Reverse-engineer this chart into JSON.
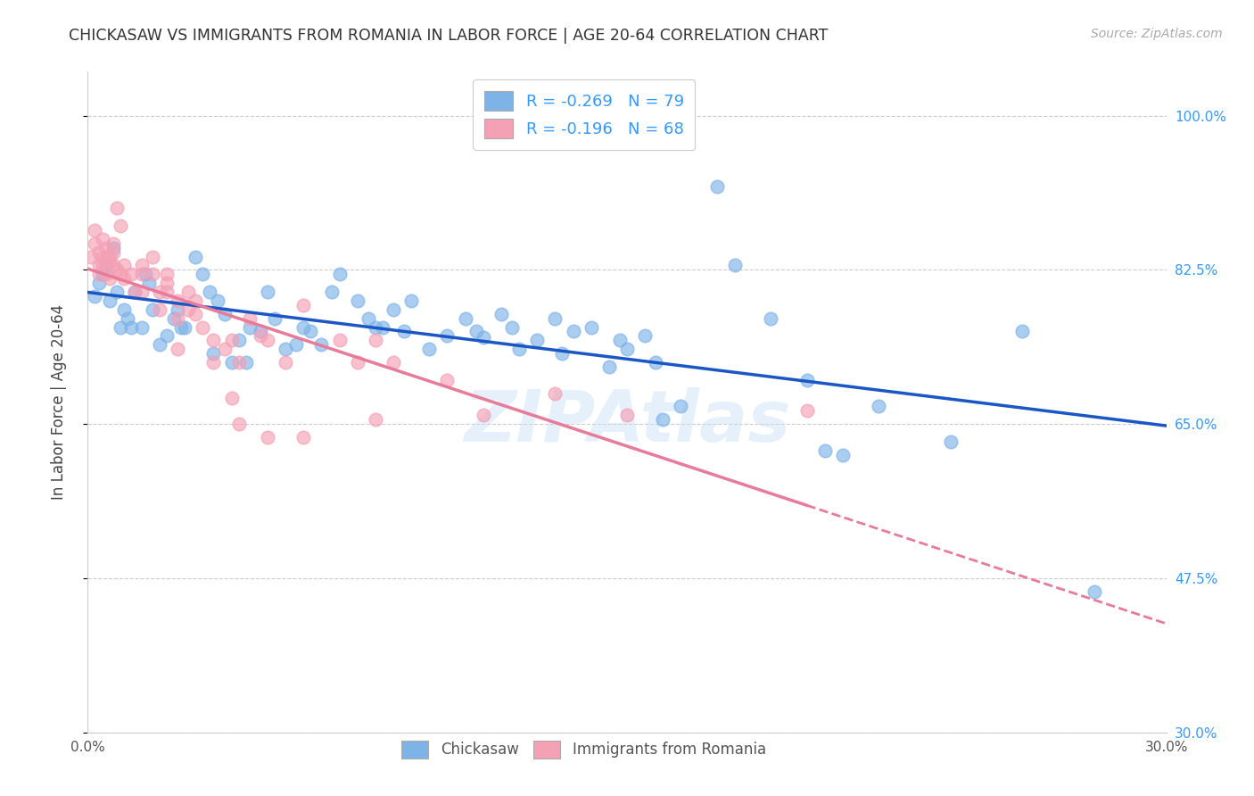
{
  "title": "CHICKASAW VS IMMIGRANTS FROM ROMANIA IN LABOR FORCE | AGE 20-64 CORRELATION CHART",
  "source": "Source: ZipAtlas.com",
  "ylabel": "In Labor Force | Age 20-64",
  "xlabel": "",
  "xlim": [
    0.0,
    0.3
  ],
  "ylim": [
    0.3,
    1.05
  ],
  "yticks": [
    0.3,
    0.475,
    0.65,
    0.825,
    1.0
  ],
  "ytick_labels": [
    "30.0%",
    "47.5%",
    "65.0%",
    "82.5%",
    "100.0%"
  ],
  "xticks": [
    0.0,
    0.05,
    0.1,
    0.15,
    0.2,
    0.25,
    0.3
  ],
  "xtick_labels": [
    "0.0%",
    "",
    "",
    "",
    "",
    "",
    "30.0%"
  ],
  "chickasaw_color": "#7eb3e8",
  "romania_color": "#f4a0b5",
  "chickasaw_line_color": "#1a56c4",
  "romania_line_color": "#e87a9a",
  "R_chickasaw": -0.269,
  "N_chickasaw": 79,
  "R_romania": -0.196,
  "N_romania": 68,
  "watermark": "ZIPAtlas",
  "right_tick_color": "#3399ff",
  "chickasaw_points": [
    [
      0.002,
      0.795
    ],
    [
      0.003,
      0.81
    ],
    [
      0.004,
      0.82
    ],
    [
      0.005,
      0.83
    ],
    [
      0.006,
      0.79
    ],
    [
      0.007,
      0.85
    ],
    [
      0.008,
      0.8
    ],
    [
      0.009,
      0.76
    ],
    [
      0.01,
      0.78
    ],
    [
      0.011,
      0.77
    ],
    [
      0.012,
      0.76
    ],
    [
      0.013,
      0.8
    ],
    [
      0.015,
      0.76
    ],
    [
      0.016,
      0.82
    ],
    [
      0.017,
      0.81
    ],
    [
      0.018,
      0.78
    ],
    [
      0.02,
      0.74
    ],
    [
      0.022,
      0.75
    ],
    [
      0.024,
      0.77
    ],
    [
      0.025,
      0.78
    ],
    [
      0.026,
      0.76
    ],
    [
      0.027,
      0.76
    ],
    [
      0.03,
      0.84
    ],
    [
      0.032,
      0.82
    ],
    [
      0.034,
      0.8
    ],
    [
      0.035,
      0.73
    ],
    [
      0.036,
      0.79
    ],
    [
      0.038,
      0.775
    ],
    [
      0.04,
      0.72
    ],
    [
      0.042,
      0.745
    ],
    [
      0.044,
      0.72
    ],
    [
      0.045,
      0.76
    ],
    [
      0.048,
      0.755
    ],
    [
      0.05,
      0.8
    ],
    [
      0.052,
      0.77
    ],
    [
      0.055,
      0.735
    ],
    [
      0.058,
      0.74
    ],
    [
      0.06,
      0.76
    ],
    [
      0.062,
      0.755
    ],
    [
      0.065,
      0.74
    ],
    [
      0.068,
      0.8
    ],
    [
      0.07,
      0.82
    ],
    [
      0.075,
      0.79
    ],
    [
      0.078,
      0.77
    ],
    [
      0.08,
      0.76
    ],
    [
      0.082,
      0.76
    ],
    [
      0.085,
      0.78
    ],
    [
      0.088,
      0.755
    ],
    [
      0.09,
      0.79
    ],
    [
      0.095,
      0.735
    ],
    [
      0.1,
      0.75
    ],
    [
      0.105,
      0.77
    ],
    [
      0.108,
      0.755
    ],
    [
      0.11,
      0.748
    ],
    [
      0.115,
      0.775
    ],
    [
      0.118,
      0.76
    ],
    [
      0.12,
      0.735
    ],
    [
      0.125,
      0.745
    ],
    [
      0.13,
      0.77
    ],
    [
      0.132,
      0.73
    ],
    [
      0.135,
      0.755
    ],
    [
      0.14,
      0.76
    ],
    [
      0.145,
      0.715
    ],
    [
      0.148,
      0.745
    ],
    [
      0.15,
      0.735
    ],
    [
      0.155,
      0.75
    ],
    [
      0.158,
      0.72
    ],
    [
      0.16,
      0.655
    ],
    [
      0.165,
      0.67
    ],
    [
      0.175,
      0.92
    ],
    [
      0.18,
      0.83
    ],
    [
      0.19,
      0.77
    ],
    [
      0.2,
      0.7
    ],
    [
      0.205,
      0.62
    ],
    [
      0.21,
      0.615
    ],
    [
      0.22,
      0.67
    ],
    [
      0.24,
      0.63
    ],
    [
      0.26,
      0.755
    ],
    [
      0.28,
      0.46
    ]
  ],
  "romania_points": [
    [
      0.001,
      0.84
    ],
    [
      0.002,
      0.87
    ],
    [
      0.002,
      0.855
    ],
    [
      0.003,
      0.83
    ],
    [
      0.003,
      0.845
    ],
    [
      0.003,
      0.82
    ],
    [
      0.004,
      0.86
    ],
    [
      0.004,
      0.84
    ],
    [
      0.004,
      0.83
    ],
    [
      0.005,
      0.85
    ],
    [
      0.005,
      0.84
    ],
    [
      0.005,
      0.82
    ],
    [
      0.006,
      0.84
    ],
    [
      0.006,
      0.835
    ],
    [
      0.006,
      0.815
    ],
    [
      0.007,
      0.855
    ],
    [
      0.007,
      0.845
    ],
    [
      0.007,
      0.83
    ],
    [
      0.008,
      0.895
    ],
    [
      0.008,
      0.825
    ],
    [
      0.009,
      0.875
    ],
    [
      0.009,
      0.82
    ],
    [
      0.01,
      0.83
    ],
    [
      0.01,
      0.815
    ],
    [
      0.012,
      0.82
    ],
    [
      0.013,
      0.8
    ],
    [
      0.015,
      0.83
    ],
    [
      0.015,
      0.82
    ],
    [
      0.015,
      0.8
    ],
    [
      0.018,
      0.84
    ],
    [
      0.018,
      0.82
    ],
    [
      0.02,
      0.8
    ],
    [
      0.02,
      0.78
    ],
    [
      0.022,
      0.82
    ],
    [
      0.022,
      0.81
    ],
    [
      0.022,
      0.8
    ],
    [
      0.025,
      0.79
    ],
    [
      0.025,
      0.77
    ],
    [
      0.025,
      0.735
    ],
    [
      0.028,
      0.8
    ],
    [
      0.028,
      0.78
    ],
    [
      0.03,
      0.79
    ],
    [
      0.03,
      0.775
    ],
    [
      0.032,
      0.76
    ],
    [
      0.035,
      0.745
    ],
    [
      0.035,
      0.72
    ],
    [
      0.038,
      0.735
    ],
    [
      0.04,
      0.745
    ],
    [
      0.04,
      0.68
    ],
    [
      0.042,
      0.72
    ],
    [
      0.042,
      0.65
    ],
    [
      0.045,
      0.77
    ],
    [
      0.048,
      0.75
    ],
    [
      0.05,
      0.745
    ],
    [
      0.05,
      0.635
    ],
    [
      0.055,
      0.72
    ],
    [
      0.06,
      0.785
    ],
    [
      0.06,
      0.635
    ],
    [
      0.07,
      0.745
    ],
    [
      0.075,
      0.72
    ],
    [
      0.08,
      0.745
    ],
    [
      0.08,
      0.655
    ],
    [
      0.085,
      0.72
    ],
    [
      0.1,
      0.7
    ],
    [
      0.11,
      0.66
    ],
    [
      0.13,
      0.685
    ],
    [
      0.15,
      0.66
    ],
    [
      0.2,
      0.665
    ]
  ]
}
